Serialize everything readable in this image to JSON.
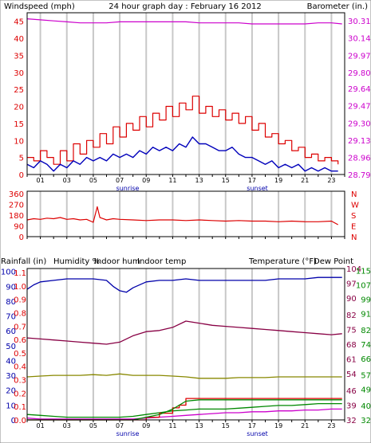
{
  "header": {
    "title": "24 hour graph day : February 16 2012",
    "left_label": "Windspeed (mph)",
    "right_label": "Barometer (in.)"
  },
  "colors": {
    "wind": "#dd0000",
    "gust": "#dd0000",
    "avg": "#0000bb",
    "baro": "#cc00cc",
    "dir": "#dd0000",
    "humidity": "#0000aa",
    "indoor_hum": "#888800",
    "indoor_temp": "#880044",
    "temperature": "#008800",
    "dew_point": "#cc00cc",
    "rain": "#dd0000",
    "grid": "#c8c8c8",
    "frame": "#000000"
  },
  "x_ticks": [
    "01",
    "03",
    "05",
    "07",
    "09",
    "11",
    "13",
    "15",
    "17",
    "19",
    "21",
    "23"
  ],
  "sun_labels": {
    "sunrise": "sunrise",
    "sunset": "sunset"
  },
  "chart_data": [
    {
      "type": "line",
      "name": "wind_baro",
      "x_range": [
        0,
        24
      ],
      "left_axis": {
        "ticks": [
          0,
          5,
          10,
          15,
          20,
          25,
          30,
          35,
          40,
          45
        ],
        "ylim": [
          0,
          47.5
        ]
      },
      "right_axis": {
        "ticks": [
          "28.79",
          "28.96",
          "29.13",
          "29.30",
          "29.47",
          "29.64",
          "29.80",
          "29.97",
          "30.14",
          "30.31"
        ],
        "ylim": [
          28.79,
          30.39
        ]
      },
      "series": [
        {
          "key": "gust",
          "axis": "left",
          "x": [
            0,
            0.5,
            1,
            1.5,
            2,
            2.5,
            3,
            3.5,
            4,
            4.5,
            5,
            5.5,
            6,
            6.5,
            7,
            7.5,
            8,
            8.5,
            9,
            9.5,
            10,
            10.5,
            11,
            11.5,
            12,
            12.5,
            13,
            13.5,
            14,
            14.5,
            15,
            15.5,
            16,
            16.5,
            17,
            17.5,
            18,
            18.5,
            19,
            19.5,
            20,
            20.5,
            21,
            21.5,
            22,
            22.5,
            23,
            23.5
          ],
          "y": [
            5,
            4,
            7,
            5,
            3,
            7,
            4,
            9,
            6,
            10,
            8,
            12,
            9,
            14,
            11,
            15,
            13,
            17,
            14,
            18,
            16,
            20,
            17,
            21,
            19,
            23,
            18,
            20,
            17,
            19,
            16,
            18,
            15,
            17,
            13,
            15,
            11,
            12,
            9,
            10,
            7,
            8,
            5,
            6,
            4,
            5,
            4,
            3
          ]
        },
        {
          "key": "avg",
          "axis": "left",
          "x": [
            0,
            0.5,
            1,
            1.5,
            2,
            2.5,
            3,
            3.5,
            4,
            4.5,
            5,
            5.5,
            6,
            6.5,
            7,
            7.5,
            8,
            8.5,
            9,
            9.5,
            10,
            10.5,
            11,
            11.5,
            12,
            12.5,
            13,
            13.5,
            14,
            14.5,
            15,
            15.5,
            16,
            16.5,
            17,
            17.5,
            18,
            18.5,
            19,
            19.5,
            20,
            20.5,
            21,
            21.5,
            22,
            22.5,
            23,
            23.5
          ],
          "y": [
            3,
            2,
            4,
            3,
            1,
            3,
            2,
            4,
            3,
            5,
            4,
            5,
            4,
            6,
            5,
            6,
            5,
            7,
            6,
            8,
            7,
            8,
            7,
            9,
            8,
            11,
            9,
            9,
            8,
            7,
            7,
            8,
            6,
            5,
            5,
            4,
            3,
            4,
            2,
            3,
            2,
            3,
            1,
            2,
            1,
            2,
            1,
            1
          ]
        },
        {
          "key": "baro",
          "axis": "right",
          "x": [
            0,
            1,
            2,
            3,
            4,
            5,
            6,
            7,
            8,
            9,
            10,
            11,
            12,
            13,
            14,
            15,
            16,
            17,
            18,
            19,
            20,
            21,
            22,
            23,
            23.8
          ],
          "y": [
            30.33,
            30.32,
            30.31,
            30.3,
            30.29,
            30.29,
            30.29,
            30.3,
            30.3,
            30.3,
            30.3,
            30.3,
            30.3,
            30.29,
            30.29,
            30.29,
            30.29,
            30.28,
            30.28,
            30.28,
            30.28,
            30.28,
            30.29,
            30.29,
            30.28
          ]
        }
      ]
    },
    {
      "type": "line",
      "name": "wind_direction",
      "x_range": [
        0,
        24
      ],
      "left_axis": {
        "ticks": [
          0,
          90,
          180,
          270,
          360
        ],
        "ylim": [
          0,
          380
        ]
      },
      "right_axis": {
        "ticks": [
          "N",
          "E",
          "S",
          "W",
          "N"
        ]
      },
      "series": [
        {
          "key": "dir",
          "axis": "left",
          "x": [
            0,
            0.5,
            1,
            1.5,
            2,
            2.5,
            3,
            3.5,
            4,
            4.5,
            5,
            5.3,
            5.5,
            6,
            6.5,
            7,
            8,
            9,
            10,
            11,
            12,
            13,
            14,
            15,
            16,
            17,
            18,
            19,
            20,
            21,
            22,
            23,
            23.5
          ],
          "y": [
            140,
            150,
            145,
            155,
            150,
            160,
            145,
            150,
            140,
            145,
            120,
            250,
            160,
            140,
            150,
            145,
            140,
            135,
            140,
            140,
            135,
            140,
            135,
            130,
            135,
            130,
            130,
            125,
            130,
            125,
            125,
            130,
            100
          ]
        }
      ]
    },
    {
      "type": "line",
      "name": "temp_hum_rain",
      "x_range": [
        0,
        24
      ],
      "left_axis_rain": {
        "ticks": [
          "0.0",
          "0.1",
          "0.2",
          "0.3",
          "0.4",
          "0.5",
          "0.6",
          "0.7",
          "0.8",
          "0.9",
          "1.0",
          "1.1"
        ],
        "ylim": [
          0,
          1.13
        ]
      },
      "left_axis_hum": {
        "ticks": [
          0,
          10,
          20,
          30,
          40,
          50,
          60,
          70,
          80,
          90,
          100
        ],
        "ylim": [
          0,
          102
        ]
      },
      "right_axis_temp": {
        "ticks": [
          32,
          40,
          49,
          57,
          66,
          74,
          82,
          91,
          99,
          107,
          115
        ],
        "ylim": [
          32,
          116
        ]
      },
      "right_axis_in": {
        "ticks": [
          32,
          39,
          46,
          54,
          61,
          68,
          75,
          82,
          90,
          97,
          104
        ],
        "ylim": [
          32,
          104
        ]
      },
      "labels": {
        "rain": "Rainfall (in)",
        "humidity": "Humidity %",
        "indoor_hum": "Indoor hum",
        "indoor_temp": "Indoor temp",
        "temperature": "Temperature (°F)",
        "dew_point": "Dew Point"
      },
      "series": [
        {
          "key": "humidity",
          "axis": "hum",
          "x": [
            0,
            0.5,
            1,
            2,
            3,
            4,
            5,
            6,
            6.5,
            7,
            7.5,
            8,
            9,
            10,
            11,
            12,
            13,
            14,
            15,
            16,
            17,
            18,
            19,
            20,
            21,
            22,
            23,
            23.8
          ],
          "y": [
            88,
            91,
            93,
            94,
            95,
            95,
            95,
            94,
            90,
            87,
            86,
            89,
            93,
            94,
            94,
            95,
            94,
            94,
            94,
            94,
            94,
            94,
            95,
            95,
            95,
            96,
            96,
            96
          ]
        },
        {
          "key": "indoor_temp",
          "axis": "in",
          "x": [
            0,
            1,
            2,
            3,
            4,
            5,
            6,
            7,
            8,
            9,
            10,
            11,
            12,
            13,
            14,
            15,
            16,
            17,
            18,
            19,
            20,
            21,
            22,
            23,
            23.8
          ],
          "y": [
            71,
            70.5,
            70,
            69.5,
            69,
            68.5,
            68,
            69,
            72,
            74,
            74.5,
            76,
            79,
            78,
            77,
            76.5,
            76,
            75.5,
            75,
            74.5,
            74,
            73.5,
            73,
            72.5,
            73
          ]
        },
        {
          "key": "indoor_hum",
          "axis": "hum",
          "x": [
            0,
            1,
            2,
            3,
            4,
            5,
            6,
            7,
            8,
            9,
            10,
            11,
            12,
            13,
            14,
            15,
            16,
            17,
            18,
            19,
            20,
            21,
            22,
            23,
            23.8
          ],
          "y": [
            29,
            29.5,
            30,
            30,
            30,
            30.5,
            30,
            31,
            30,
            30,
            30,
            29.5,
            29,
            28,
            28,
            28,
            28.5,
            28.5,
            28.5,
            29,
            29,
            29,
            29,
            29,
            29
          ]
        },
        {
          "key": "temperature",
          "axis": "temp",
          "x": [
            0,
            1,
            2,
            3,
            4,
            5,
            6,
            7,
            8,
            9,
            10,
            11,
            12,
            13,
            14,
            15,
            16,
            17,
            18,
            19,
            20,
            21,
            22,
            23,
            23.8
          ],
          "y": [
            35,
            34.5,
            34,
            33.5,
            33.5,
            33.5,
            33.5,
            33.5,
            34,
            35,
            36,
            37,
            37.5,
            38,
            38,
            38,
            38.5,
            39,
            39.5,
            40,
            40,
            40.5,
            41,
            41,
            41
          ]
        },
        {
          "key": "dew_point",
          "axis": "temp",
          "x": [
            0,
            1,
            2,
            3,
            4,
            5,
            6,
            7,
            8,
            9,
            10,
            11,
            12,
            13,
            14,
            15,
            16,
            17,
            18,
            19,
            20,
            21,
            22,
            23,
            23.8
          ],
          "y": [
            33,
            32.5,
            32.5,
            32.5,
            32.5,
            32.5,
            32.5,
            32.5,
            32.5,
            33,
            33.5,
            34,
            34.5,
            35,
            35.5,
            36,
            36,
            36.5,
            36.5,
            37,
            37,
            37.5,
            37.5,
            38,
            38
          ]
        },
        {
          "key": "rain",
          "axis": "rain",
          "x": [
            0,
            1,
            2,
            3,
            4,
            5,
            6,
            7,
            8,
            9,
            10,
            11,
            11.5,
            12,
            13,
            14,
            15,
            16,
            17,
            18,
            19,
            20,
            21,
            22,
            23,
            23.8
          ],
          "y": [
            0,
            0,
            0,
            0,
            0,
            0,
            0,
            0,
            0,
            0.02,
            0.05,
            0.09,
            0.11,
            0.16,
            0.16,
            0.16,
            0.16,
            0.16,
            0.16,
            0.16,
            0.16,
            0.16,
            0.16,
            0.16,
            0.16,
            0.16
          ]
        },
        {
          "key": "rain_total",
          "axis": "rain",
          "x": [
            0,
            1,
            2,
            3,
            4,
            5,
            6,
            7,
            8,
            9,
            10,
            11,
            12,
            13,
            14,
            15,
            16,
            17,
            18,
            19,
            20,
            21,
            22,
            23,
            23.8
          ],
          "y": [
            0,
            0,
            0,
            0,
            0,
            0,
            0,
            0,
            0,
            0.02,
            0.04,
            0.08,
            0.14,
            0.15,
            0.15,
            0.15,
            0.15,
            0.15,
            0.15,
            0.15,
            0.15,
            0.15,
            0.15,
            0.15,
            0.15
          ]
        }
      ]
    }
  ]
}
